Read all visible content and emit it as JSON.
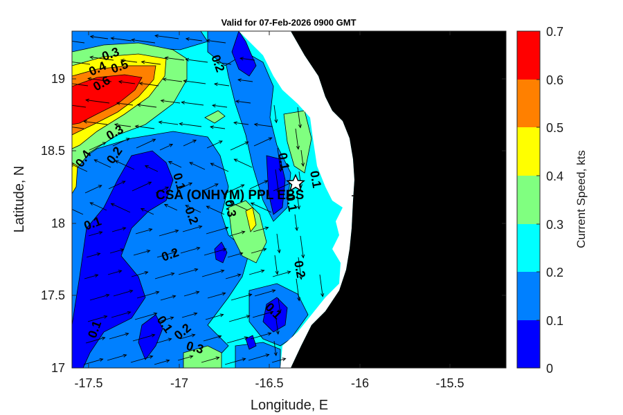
{
  "title": "Valid for 07-Feb-2026 0900 GMT",
  "xlabel": "Longitude, E",
  "ylabel": "Latitude, N",
  "colorbar_label": "Current Speed, kts",
  "station_label": "CSA (ONHYM) PPL EBS",
  "x_ticks": [
    "-17.5",
    "-17",
    "-16.5",
    "-16",
    "-15.5"
  ],
  "y_ticks": [
    "19",
    "18.5",
    "18",
    "17.5",
    "17"
  ],
  "cb_ticks": [
    "0.7",
    "0.6",
    "0.5",
    "0.4",
    "0.3",
    "0.2",
    "0.1",
    "0"
  ],
  "contour_labels": [
    "0.3",
    "0.4",
    "0.5",
    "0.6",
    "0.3",
    "0.2",
    "0.4",
    "0.2",
    "0.1",
    "0.1",
    "0.2",
    "0.3",
    "0.1",
    "0.2",
    "0.1",
    "0.2",
    "0.1",
    "0.3",
    "0.1",
    "0.2",
    "0.1",
    "0.1"
  ],
  "colors": {
    "levels": [
      "#0000ff",
      "#0080ff",
      "#00ffff",
      "#80ff80",
      "#ffff00",
      "#ff8000",
      "#ff0000"
    ],
    "land": "#000000",
    "coast_gap": "#ffffff"
  },
  "chart_data": {
    "type": "heatmap",
    "title": "Valid for 07-Feb-2026 0900 GMT",
    "xlabel": "Longitude, E",
    "ylabel": "Latitude, N",
    "xlim": [
      -17.6,
      -15.2
    ],
    "ylim": [
      17.0,
      19.33
    ],
    "colorbar": {
      "label": "Current Speed, kts",
      "range": [
        0,
        0.7
      ],
      "levels": [
        0,
        0.1,
        0.2,
        0.3,
        0.4,
        0.5,
        0.6,
        0.7
      ]
    },
    "station": {
      "name": "CSA (ONHYM) PPL EBS",
      "lon": -16.35,
      "lat": 18.28
    },
    "vector_field": "current direction arrows"
  }
}
